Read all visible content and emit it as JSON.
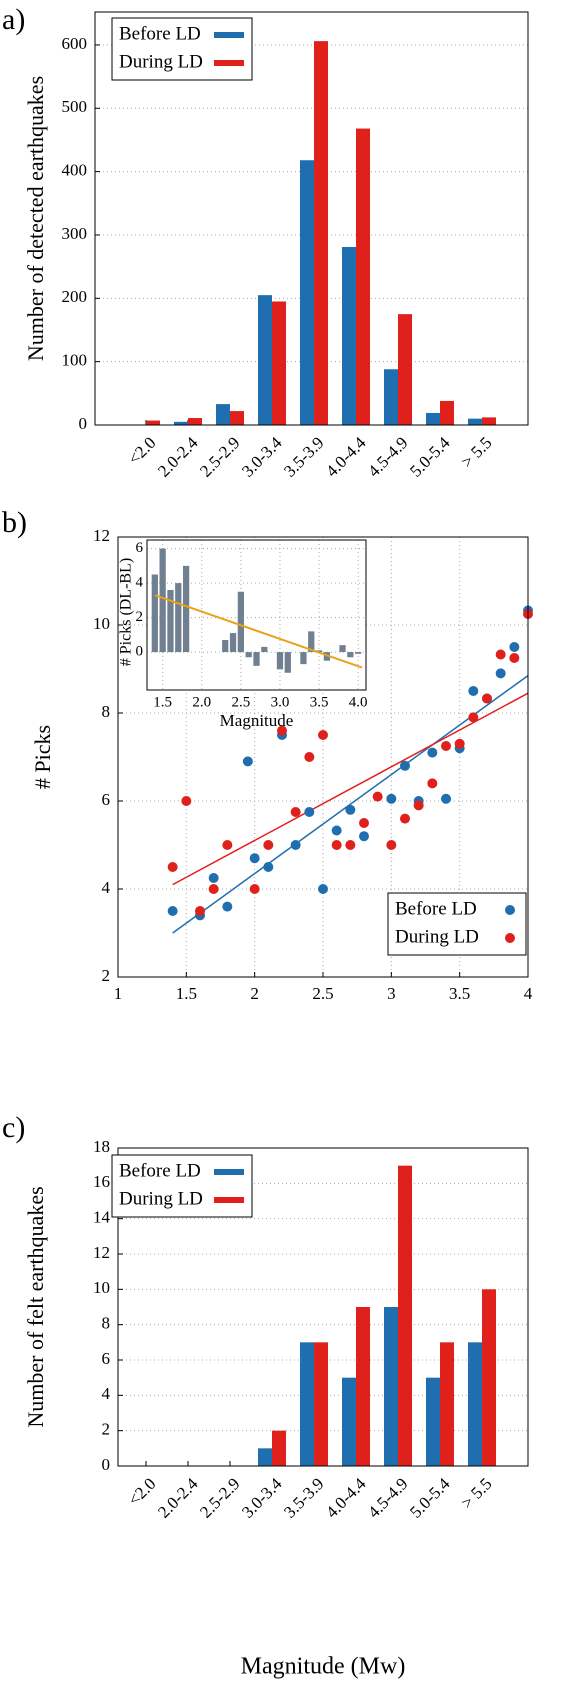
{
  "chart_data": [
    {
      "type": "bar",
      "label": "a)",
      "ylabel": "Number of detected earthquakes",
      "categories": [
        "<2.0",
        "2.0-2.4",
        "2.5-2.9",
        "3.0-3.4",
        "3.5-3.9",
        "4.0-4.4",
        "4.5-4.9",
        "5.0-5.4",
        "> 5.5"
      ],
      "series": [
        {
          "name": "Before LD",
          "color": "#1f6fb0",
          "values": [
            0,
            5,
            33,
            205,
            418,
            281,
            88,
            19,
            10
          ]
        },
        {
          "name": "During LD",
          "color": "#e0201b",
          "values": [
            7,
            11,
            22,
            195,
            606,
            468,
            175,
            38,
            12
          ]
        }
      ],
      "ylim": [
        0,
        652
      ],
      "yticks": [
        0,
        100,
        200,
        300,
        400,
        500,
        600
      ],
      "grid": true,
      "legend": "upper left"
    },
    {
      "type": "scatter",
      "label": "b)",
      "ylabel": "# Picks",
      "series": [
        {
          "name": "Before LD",
          "color": "#1f6fb0",
          "x": [
            1.4,
            1.6,
            1.7,
            1.8,
            1.95,
            2.0,
            2.1,
            2.2,
            2.3,
            2.4,
            2.5,
            2.6,
            2.7,
            2.8,
            3.0,
            3.1,
            3.2,
            3.3,
            3.4,
            3.5,
            3.6,
            3.7,
            3.8,
            3.9,
            4.0
          ],
          "values": [
            3.5,
            3.4,
            4.25,
            3.6,
            6.9,
            4.7,
            4.5,
            7.5,
            5.0,
            5.75,
            4.0,
            5.33,
            5.8,
            5.2,
            6.05,
            6.8,
            6.0,
            7.1,
            6.05,
            7.2,
            8.5,
            8.33,
            8.9,
            9.5,
            10.33
          ],
          "fit": {
            "x": [
              1.4,
              4.0
            ],
            "values": [
              3.0,
              8.85
            ]
          }
        },
        {
          "name": "During LD",
          "color": "#e0201b",
          "x": [
            1.4,
            1.5,
            1.6,
            1.7,
            1.8,
            2.0,
            2.1,
            2.2,
            2.3,
            2.4,
            2.5,
            2.6,
            2.7,
            2.8,
            2.9,
            3.0,
            3.1,
            3.2,
            3.3,
            3.4,
            3.5,
            3.6,
            3.7,
            3.8,
            3.9,
            4.0
          ],
          "values": [
            4.5,
            6.0,
            3.5,
            4.0,
            5.0,
            4.0,
            5.0,
            7.6,
            5.75,
            7.0,
            7.5,
            5.0,
            5.0,
            5.5,
            6.1,
            5.0,
            5.6,
            5.9,
            6.4,
            7.25,
            7.3,
            7.9,
            8.33,
            9.33,
            9.25,
            10.25
          ],
          "fit": {
            "x": [
              1.4,
              4.0
            ],
            "values": [
              4.1,
              8.45
            ]
          }
        }
      ],
      "xlim": [
        1,
        4
      ],
      "xticks": [
        1,
        1.5,
        2,
        2.5,
        3,
        3.5,
        4
      ],
      "ylim": [
        2,
        12
      ],
      "yticks": [
        2,
        4,
        6,
        8,
        10,
        12
      ],
      "grid": true,
      "legend": "lower right",
      "inset": {
        "type": "bar",
        "xlabel": "Magnitude",
        "ylabel": "# Picks (DL-BL)",
        "color": "#708090",
        "x": [
          1.4,
          1.5,
          1.6,
          1.7,
          1.8,
          2.3,
          2.4,
          2.5,
          2.6,
          2.7,
          2.8,
          3.0,
          3.1,
          3.3,
          3.4,
          3.5,
          3.6,
          3.8,
          3.9,
          4.0
        ],
        "values": [
          4.5,
          6.0,
          3.6,
          4.0,
          5.0,
          0.7,
          1.1,
          3.5,
          -0.3,
          -0.8,
          0.3,
          -1.0,
          -1.2,
          -0.7,
          1.2,
          0.1,
          -0.5,
          0.4,
          -0.3,
          -0.1
        ],
        "trend": {
          "color": "#e8a317",
          "x": [
            1.4,
            4.05
          ],
          "values": [
            3.3,
            -0.9
          ]
        },
        "xlim": [
          1.3,
          4.1
        ],
        "xticks": [
          1.5,
          {
            "value": 2,
            "label": "2.0"
          },
          2.5,
          {
            "value": 3,
            "label": "3.0"
          },
          3.5,
          {
            "value": 4,
            "label": "4.0"
          }
        ],
        "ylim": [
          -2.2,
          6.5
        ],
        "yticks": [
          0,
          2,
          4,
          6
        ],
        "grid": true
      }
    },
    {
      "type": "bar",
      "label": "c)",
      "ylabel": "Number of felt earthquakes",
      "xlabel": "Magnitude (Mw)",
      "categories": [
        "<2.0",
        "2.0-2.4",
        "2.5-2.9",
        "3.0-3.4",
        "3.5-3.9",
        "4.0-4.4",
        "4.5-4.9",
        "5.0-5.4",
        "> 5.5"
      ],
      "series": [
        {
          "name": "Before LD",
          "color": "#1f6fb0",
          "values": [
            0,
            0,
            0,
            1,
            7,
            5,
            9,
            5,
            7
          ]
        },
        {
          "name": "During LD",
          "color": "#e0201b",
          "values": [
            0,
            0,
            0,
            2,
            7,
            9,
            17,
            7,
            10
          ]
        }
      ],
      "ylim": [
        0,
        18
      ],
      "yticks": [
        0,
        2,
        4,
        6,
        8,
        10,
        12,
        14,
        16,
        18
      ],
      "grid": true,
      "legend": "upper left"
    }
  ]
}
